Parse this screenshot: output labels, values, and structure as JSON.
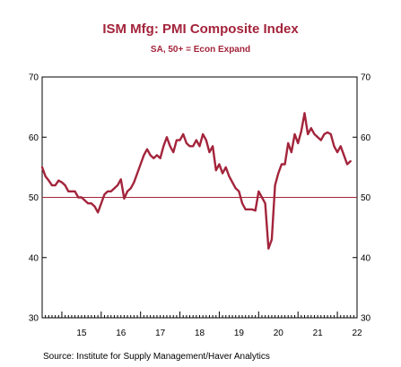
{
  "chart_data": {
    "type": "line",
    "title": "ISM Mfg: PMI Composite Index",
    "subtitle": "SA, 50+ = Econ Expand",
    "source": "Source:  Institute for Supply Management/Haver Analytics",
    "x_start_year": 2014.5,
    "x_end_year": 2022.5,
    "xlim": [
      2014.5,
      2022.5
    ],
    "ylim": [
      30,
      70
    ],
    "y_ticks": [
      30,
      40,
      50,
      60,
      70
    ],
    "y_tick_labels": [
      "30",
      "40",
      "50",
      "60",
      "70"
    ],
    "x_ticks": [
      2015,
      2016,
      2017,
      2018,
      2019,
      2020,
      2021,
      2022
    ],
    "x_tick_labels": [
      "15",
      "16",
      "17",
      "18",
      "19",
      "20",
      "21",
      "22"
    ],
    "reference_line": 50,
    "line_color": "#a3243b",
    "ref_color": "#a3243b",
    "series": [
      {
        "x": [
          "2014-07",
          "2014-08",
          "2014-09",
          "2014-10",
          "2014-11",
          "2014-12",
          "2015-01",
          "2015-02",
          "2015-03",
          "2015-04",
          "2015-05",
          "2015-06",
          "2015-07",
          "2015-08",
          "2015-09",
          "2015-10",
          "2015-11",
          "2015-12",
          "2016-01",
          "2016-02",
          "2016-03",
          "2016-04",
          "2016-05",
          "2016-06",
          "2016-07",
          "2016-08",
          "2016-09",
          "2016-10",
          "2016-11",
          "2016-12",
          "2017-01",
          "2017-02",
          "2017-03",
          "2017-04",
          "2017-05",
          "2017-06",
          "2017-07",
          "2017-08",
          "2017-09",
          "2017-10",
          "2017-11",
          "2017-12",
          "2018-01",
          "2018-02",
          "2018-03",
          "2018-04",
          "2018-05",
          "2018-06",
          "2018-07",
          "2018-08",
          "2018-09",
          "2018-10",
          "2018-11",
          "2018-12",
          "2019-01",
          "2019-02",
          "2019-03",
          "2019-04",
          "2019-05",
          "2019-06",
          "2019-07",
          "2019-08",
          "2019-09",
          "2019-10",
          "2019-11",
          "2019-12",
          "2020-01",
          "2020-02",
          "2020-03",
          "2020-04",
          "2020-05",
          "2020-06",
          "2020-07",
          "2020-08",
          "2020-09",
          "2020-10",
          "2020-11",
          "2020-12",
          "2021-01",
          "2021-02",
          "2021-03",
          "2021-04",
          "2021-05",
          "2021-06",
          "2021-07",
          "2021-08",
          "2021-09",
          "2021-10",
          "2021-11",
          "2021-12",
          "2022-01",
          "2022-02",
          "2022-03",
          "2022-04",
          "2022-05"
        ],
        "values": [
          55.0,
          53.5,
          52.8,
          52.0,
          52.0,
          52.8,
          52.5,
          52.0,
          51.0,
          51.0,
          51.0,
          50.0,
          50.0,
          49.5,
          49.0,
          49.0,
          48.5,
          47.5,
          49.0,
          50.5,
          51.0,
          51.0,
          51.5,
          52.0,
          53.0,
          49.8,
          51.0,
          51.5,
          52.5,
          54.0,
          55.5,
          57.0,
          58.0,
          57.0,
          56.5,
          57.0,
          56.5,
          58.5,
          60.0,
          58.5,
          57.5,
          59.5,
          59.5,
          60.5,
          59.0,
          58.5,
          58.5,
          59.5,
          58.5,
          60.5,
          59.5,
          57.5,
          58.5,
          54.5,
          55.5,
          54.0,
          55.0,
          53.5,
          52.5,
          51.5,
          51.0,
          49.0,
          48.0,
          48.0,
          48.0,
          47.8,
          51.0,
          50.0,
          49.0,
          41.5,
          43.0,
          52.0,
          54.0,
          55.5,
          55.5,
          59.0,
          57.5,
          60.5,
          59.0,
          61.0,
          64.0,
          60.5,
          61.5,
          60.5,
          60.0,
          59.5,
          60.5,
          60.8,
          60.5,
          58.5,
          57.5,
          58.5,
          57.0,
          55.5,
          56.0
        ]
      }
    ]
  }
}
